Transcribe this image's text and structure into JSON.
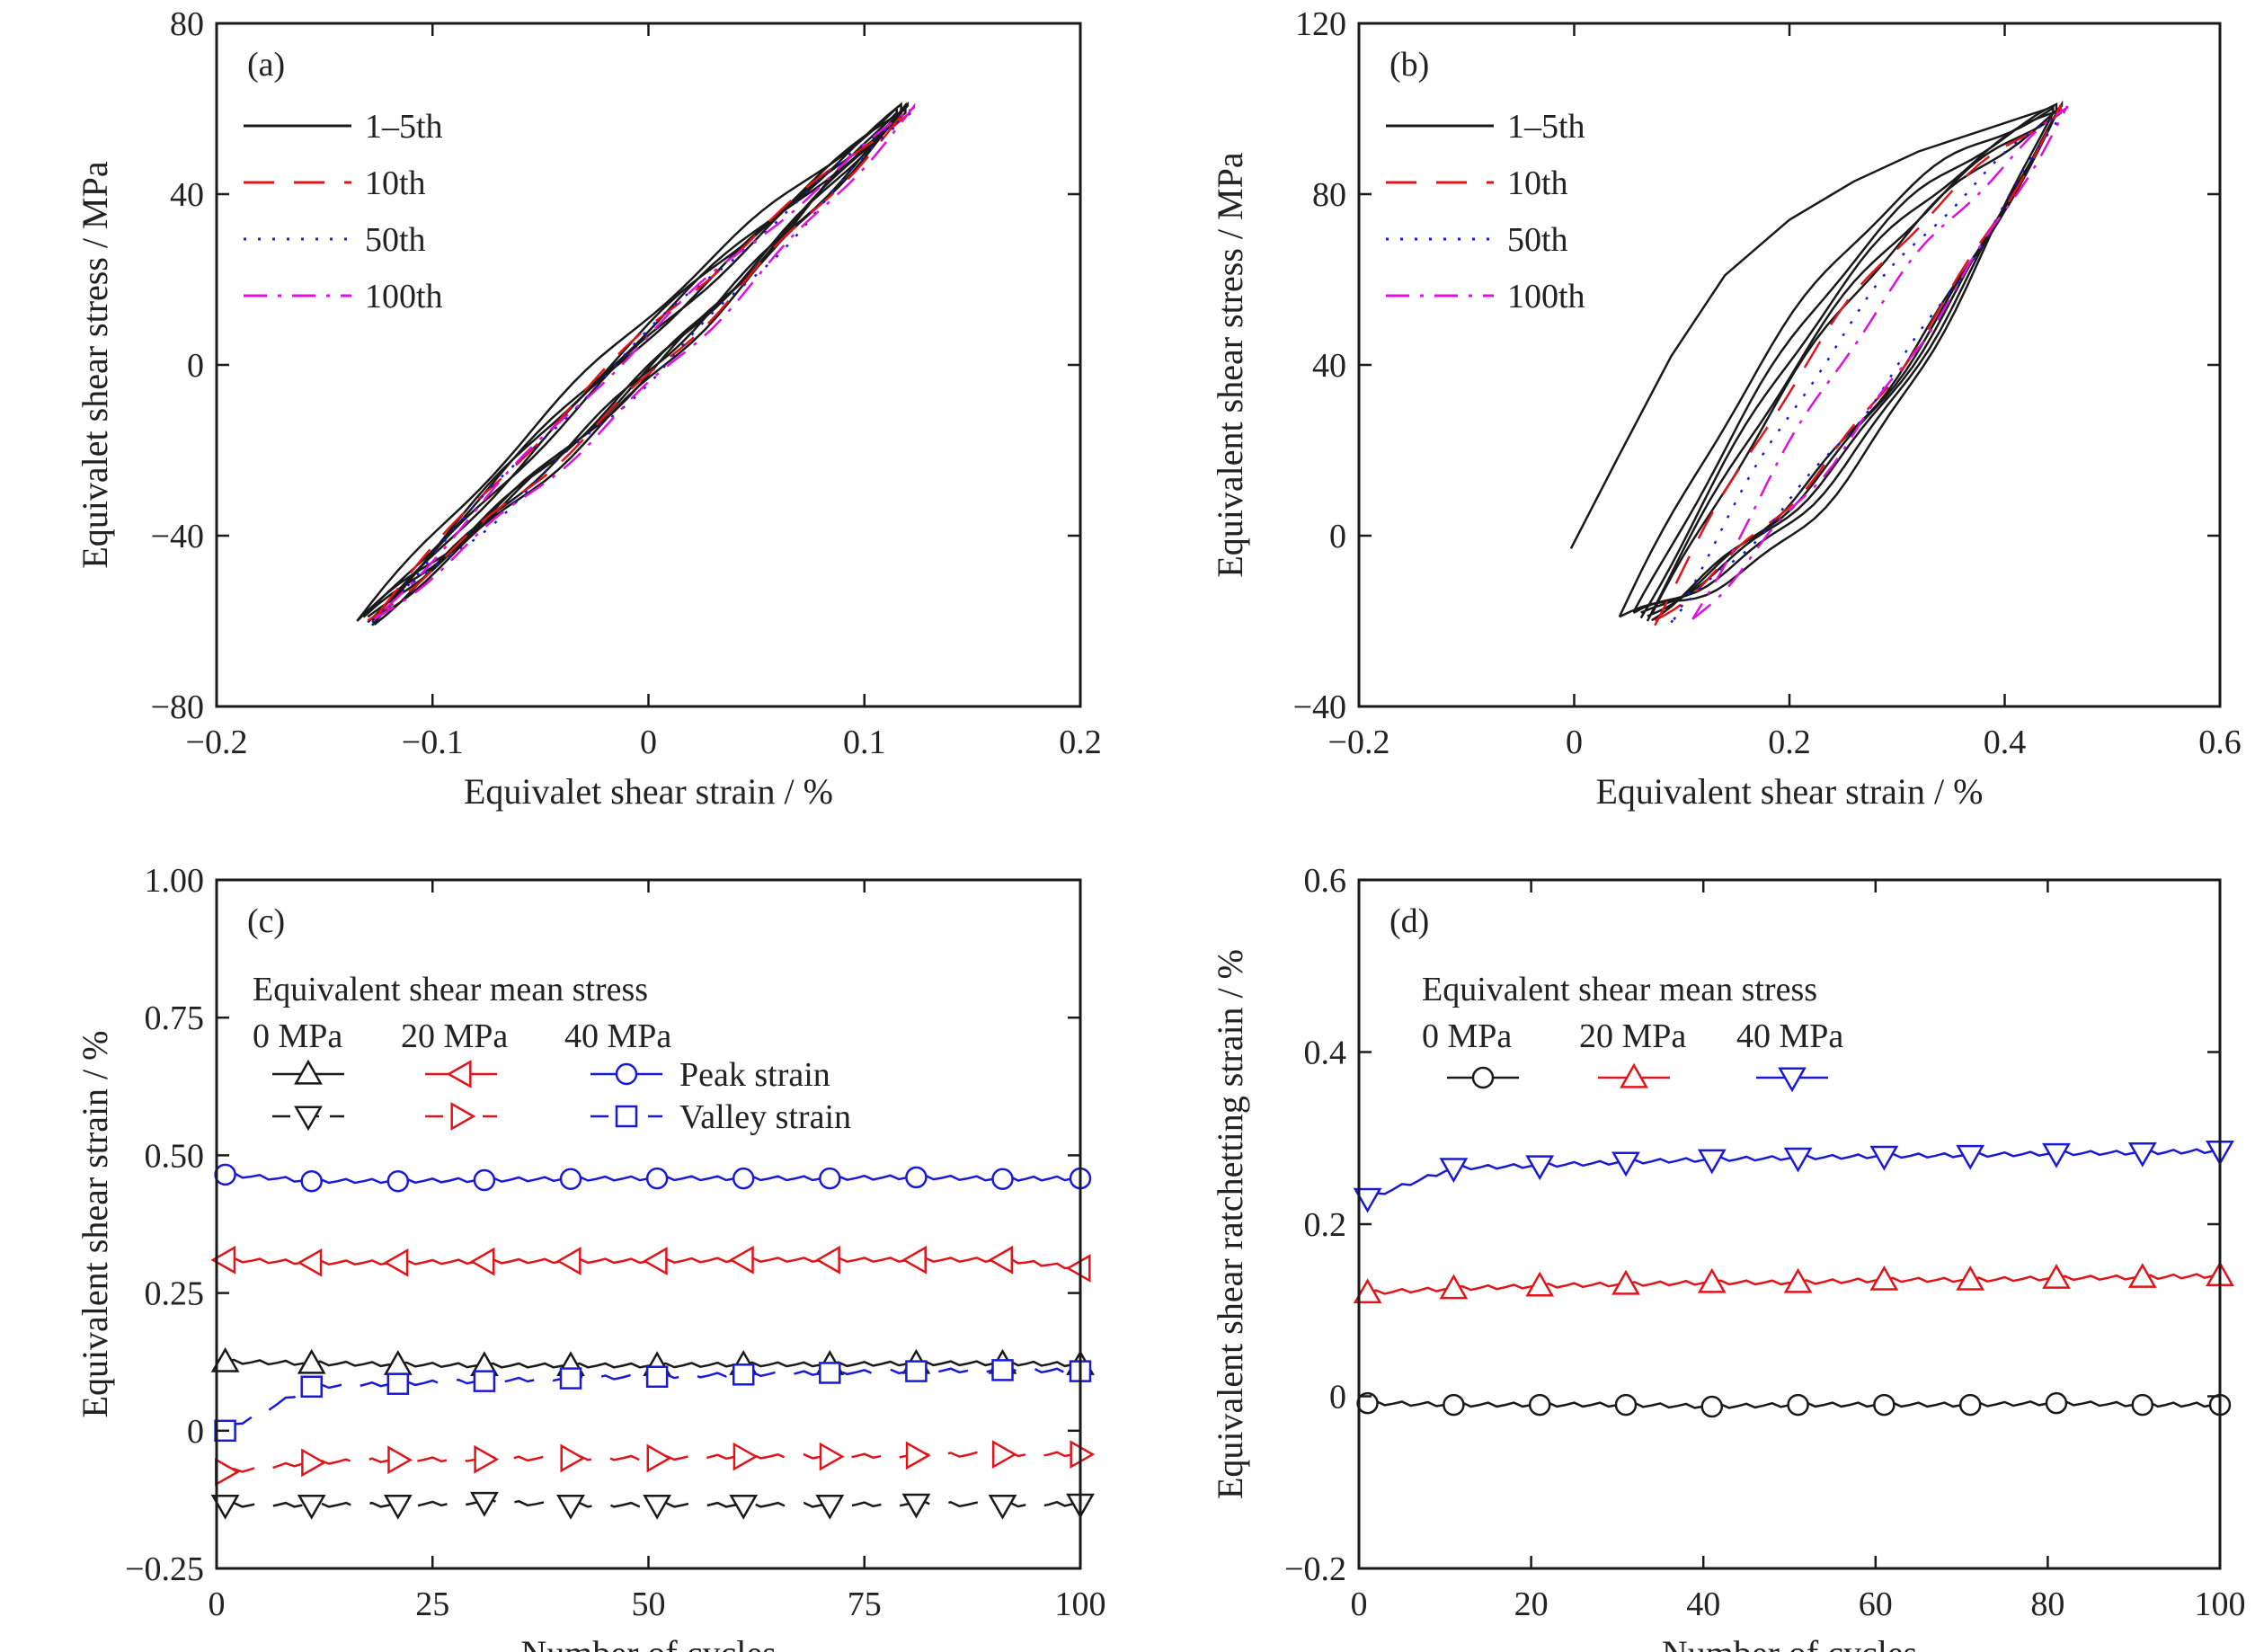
{
  "colors": {
    "black": "#1a1a1a",
    "red": "#e0151a",
    "blue": "#1a1ad6",
    "magenta": "#e010e0"
  },
  "chart_data": [
    {
      "panel": "(a)",
      "type": "line",
      "xlabel": "Equivalet shear strain / %",
      "ylabel": "Equivalet shear stress / MPa",
      "xlim": [
        -0.2,
        0.2
      ],
      "ylim": [
        -80,
        80
      ],
      "xticks": [
        -0.2,
        -0.1,
        0,
        0.1,
        0.2
      ],
      "xtick_labels": [
        "−0.2",
        "−0.1",
        "0",
        "0.1",
        "0.2"
      ],
      "yticks": [
        -80,
        -40,
        0,
        40,
        80
      ],
      "ytick_labels": [
        "−80",
        "−40",
        "0",
        "40",
        "80"
      ],
      "legend": {
        "placement": "top-left",
        "entries": [
          "1–5th",
          "10th",
          "50th",
          "100th"
        ]
      },
      "series": [
        {
          "name": "1–5th",
          "style": "solid",
          "color": "#1a1a1a",
          "loops": [
            {
              "lo": [
                -0.135,
                -60
              ],
              "hi": [
                0.115,
                60
              ],
              "up_off": -7,
              "down_off": 7
            },
            {
              "lo": [
                -0.132,
                -60
              ],
              "hi": [
                0.117,
                60
              ],
              "up_off": -5,
              "down_off": 5
            },
            {
              "lo": [
                -0.13,
                -60
              ],
              "hi": [
                0.118,
                60
              ],
              "up_off": -4,
              "down_off": 6
            },
            {
              "lo": [
                -0.128,
                -60
              ],
              "hi": [
                0.119,
                60
              ],
              "up_off": -6,
              "down_off": 4
            },
            {
              "lo": [
                -0.127,
                -60
              ],
              "hi": [
                0.12,
                60
              ],
              "up_off": -3,
              "down_off": 5
            }
          ]
        },
        {
          "name": "10th",
          "style": "dash",
          "color": "#e0151a",
          "loops": [
            {
              "lo": [
                -0.13,
                -60
              ],
              "hi": [
                0.121,
                60
              ],
              "up_off": -5,
              "down_off": 6
            }
          ]
        },
        {
          "name": "50th",
          "style": "dot",
          "color": "#1a1ad6",
          "loops": [
            {
              "lo": [
                -0.128,
                -60
              ],
              "hi": [
                0.122,
                60
              ],
              "up_off": -5,
              "down_off": 6
            }
          ]
        },
        {
          "name": "100th",
          "style": "dashdot",
          "color": "#e010e0",
          "loops": [
            {
              "lo": [
                -0.127,
                -60
              ],
              "hi": [
                0.123,
                60
              ],
              "up_off": -6,
              "down_off": 6
            }
          ]
        }
      ]
    },
    {
      "panel": "(b)",
      "type": "line",
      "xlabel": "Equivalent shear strain / %",
      "ylabel": "Equivalent shear stress / MPa",
      "xlim": [
        -0.2,
        0.6
      ],
      "ylim": [
        -40,
        120
      ],
      "xticks": [
        -0.2,
        0,
        0.2,
        0.4,
        0.6
      ],
      "xtick_labels": [
        "−0.2",
        "0",
        "0.2",
        "0.4",
        "0.6"
      ],
      "yticks": [
        -40,
        0,
        40,
        80,
        120
      ],
      "ytick_labels": [
        "−40",
        "0",
        "40",
        "80",
        "120"
      ],
      "legend": {
        "placement": "top-left",
        "entries": [
          "1–5th",
          "10th",
          "50th",
          "100th"
        ]
      },
      "initial_curve": [
        [
          -0.003,
          -3
        ],
        [
          0.04,
          18
        ],
        [
          0.09,
          42
        ],
        [
          0.14,
          61
        ],
        [
          0.2,
          74
        ],
        [
          0.26,
          83
        ],
        [
          0.32,
          90
        ],
        [
          0.38,
          95
        ],
        [
          0.44,
          100
        ]
      ],
      "series": [
        {
          "name": "1–5th",
          "style": "solid",
          "color": "#1a1a1a",
          "loops": [
            {
              "lo": [
                0.042,
                -19
              ],
              "hi": [
                0.445,
                100
              ],
              "up_off": -30,
              "down_off": 24
            },
            {
              "lo": [
                0.055,
                -19
              ],
              "hi": [
                0.448,
                100
              ],
              "up_off": -24,
              "down_off": 22
            },
            {
              "lo": [
                0.062,
                -19
              ],
              "hi": [
                0.45,
                100
              ],
              "up_off": -20,
              "down_off": 20
            },
            {
              "lo": [
                0.068,
                -19
              ],
              "hi": [
                0.452,
                100
              ],
              "up_off": -17,
              "down_off": 18
            },
            {
              "lo": [
                0.072,
                -19
              ],
              "hi": [
                0.453,
                100
              ],
              "up_off": -15,
              "down_off": 17
            }
          ]
        },
        {
          "name": "10th",
          "style": "dash",
          "color": "#e0151a",
          "loops": [
            {
              "lo": [
                0.075,
                -20
              ],
              "hi": [
                0.452,
                100
              ],
              "up_off": -14,
              "down_off": 17
            }
          ]
        },
        {
          "name": "50th",
          "style": "dot",
          "color": "#1a1ad6",
          "loops": [
            {
              "lo": [
                0.09,
                -20
              ],
              "hi": [
                0.455,
                100
              ],
              "up_off": -10,
              "down_off": 15
            }
          ]
        },
        {
          "name": "100th",
          "style": "dashdot",
          "color": "#e010e0",
          "loops": [
            {
              "lo": [
                0.11,
                -20
              ],
              "hi": [
                0.458,
                100
              ],
              "up_off": -8,
              "down_off": 14
            }
          ]
        }
      ]
    },
    {
      "panel": "(c)",
      "type": "line",
      "xlabel": "Number of cycles",
      "ylabel": "Equivalent shear strain / %",
      "xlim": [
        0,
        100
      ],
      "ylim": [
        -0.25,
        1.0
      ],
      "xticks": [
        0,
        25,
        50,
        75,
        100
      ],
      "xtick_labels": [
        "0",
        "25",
        "50",
        "75",
        "100"
      ],
      "yticks": [
        -0.25,
        0,
        0.25,
        0.5,
        0.75,
        1.0
      ],
      "ytick_labels": [
        "−0.25",
        "0",
        "0.25",
        "0.50",
        "0.75",
        "1.00"
      ],
      "legend": {
        "placement": "upper-left",
        "title": "Equivalent shear mean stress",
        "columns": [
          "0 MPa",
          "20 MPa",
          "40 MPa"
        ],
        "rows": [
          "Peak strain",
          "Valley strain"
        ]
      },
      "x": [
        1,
        11,
        21,
        31,
        41,
        51,
        61,
        71,
        81,
        91,
        100
      ],
      "series": [
        {
          "name": "0 MPa peak",
          "color": "#1a1a1a",
          "style": "solid",
          "marker": "triangle-up",
          "values": [
            0.125,
            0.122,
            0.12,
            0.118,
            0.118,
            0.118,
            0.12,
            0.12,
            0.122,
            0.122,
            0.12
          ]
        },
        {
          "name": "0 MPa valley",
          "color": "#1a1a1a",
          "style": "dash",
          "marker": "triangle-down",
          "values": [
            -0.135,
            -0.135,
            -0.135,
            -0.13,
            -0.135,
            -0.135,
            -0.135,
            -0.135,
            -0.133,
            -0.135,
            -0.133
          ]
        },
        {
          "name": "20 MPa peak",
          "color": "#e0151a",
          "style": "solid",
          "marker": "triangle-left",
          "values": [
            0.31,
            0.305,
            0.305,
            0.307,
            0.308,
            0.308,
            0.31,
            0.31,
            0.31,
            0.31,
            0.295
          ]
        },
        {
          "name": "20 MPa valley",
          "color": "#e0151a",
          "style": "dash",
          "marker": "triangle-right",
          "values": [
            -0.075,
            -0.058,
            -0.053,
            -0.052,
            -0.05,
            -0.05,
            -0.047,
            -0.047,
            -0.045,
            -0.043,
            -0.043
          ]
        },
        {
          "name": "40 MPa peak",
          "color": "#1a1ad6",
          "style": "solid",
          "marker": "circle",
          "values": [
            0.465,
            0.453,
            0.453,
            0.455,
            0.457,
            0.458,
            0.458,
            0.458,
            0.46,
            0.457,
            0.458
          ]
        },
        {
          "name": "40 MPa valley",
          "color": "#1a1ad6",
          "style": "dash",
          "marker": "square",
          "values": [
            0.0,
            0.08,
            0.085,
            0.09,
            0.095,
            0.098,
            0.102,
            0.105,
            0.108,
            0.11,
            0.108
          ]
        }
      ]
    },
    {
      "panel": "(d)",
      "type": "line",
      "xlabel": "Number of cycles",
      "ylabel": "Equivalent shear ratchetting strain / %",
      "xlim": [
        0,
        100
      ],
      "ylim": [
        -0.2,
        0.6
      ],
      "xticks": [
        0,
        20,
        40,
        60,
        80,
        100
      ],
      "xtick_labels": [
        "0",
        "20",
        "40",
        "60",
        "80",
        "100"
      ],
      "yticks": [
        -0.2,
        0,
        0.2,
        0.4,
        0.6
      ],
      "ytick_labels": [
        "−0.2",
        "0",
        "0.2",
        "0.4",
        "0.6"
      ],
      "legend": {
        "placement": "upper-left",
        "title": "Equivalent shear mean stress",
        "columns": [
          "0 MPa",
          "20 MPa",
          "40 MPa"
        ]
      },
      "x": [
        1,
        11,
        21,
        31,
        41,
        51,
        61,
        71,
        81,
        91,
        100
      ],
      "series": [
        {
          "name": "0 MPa",
          "color": "#1a1a1a",
          "style": "solid",
          "marker": "circle",
          "values": [
            -0.008,
            -0.01,
            -0.01,
            -0.01,
            -0.012,
            -0.01,
            -0.01,
            -0.01,
            -0.008,
            -0.01,
            -0.01
          ]
        },
        {
          "name": "20 MPa",
          "color": "#e0151a",
          "style": "solid",
          "marker": "triangle-up",
          "values": [
            0.12,
            0.125,
            0.128,
            0.13,
            0.132,
            0.132,
            0.135,
            0.135,
            0.137,
            0.138,
            0.14
          ]
        },
        {
          "name": "40 MPa",
          "color": "#1a1ad6",
          "style": "solid",
          "marker": "triangle-down",
          "values": [
            0.23,
            0.265,
            0.268,
            0.272,
            0.275,
            0.277,
            0.279,
            0.28,
            0.282,
            0.283,
            0.285
          ]
        }
      ]
    }
  ]
}
